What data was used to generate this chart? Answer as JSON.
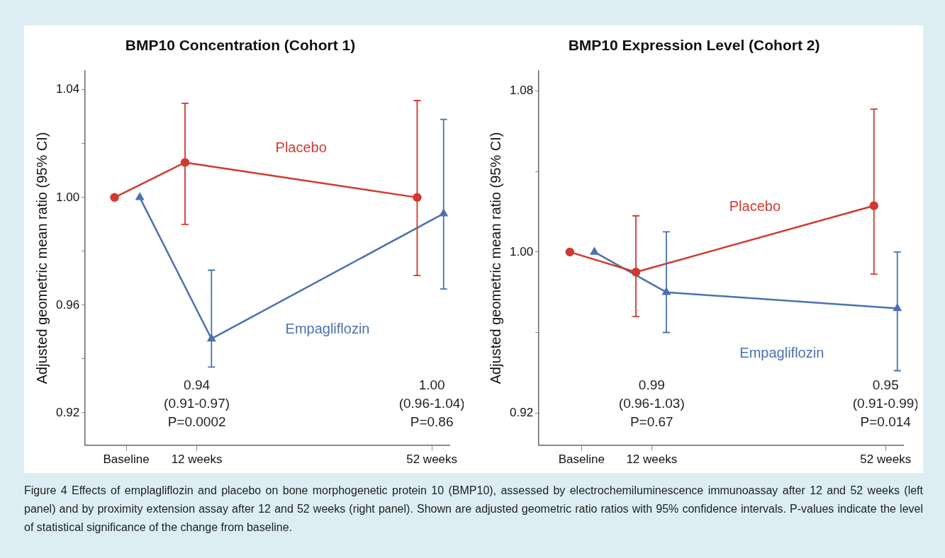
{
  "chart_data": [
    {
      "type": "line",
      "title": "BMP10 Concentration (Cohort 1)",
      "ylabel": "Adjusted geometric mean ratio (95% CI)",
      "xlim": [
        -7,
        55
      ],
      "xticks": [
        {
          "value": 0,
          "label": "Baseline"
        },
        {
          "value": 12,
          "label": "12 weeks"
        },
        {
          "value": 52,
          "label": "52 weeks"
        }
      ],
      "ylim": [
        0.908,
        1.047
      ],
      "yticks": [
        {
          "value": 0.92,
          "label": "0.92"
        },
        {
          "value": 0.94,
          "label": null
        },
        {
          "value": 0.96,
          "label": "0.96"
        },
        {
          "value": 0.98,
          "label": null
        },
        {
          "value": 1,
          "label": "1.00"
        },
        {
          "value": 1.02,
          "label": null
        },
        {
          "value": 1.04,
          "label": "1.04"
        }
      ],
      "grid": false,
      "legend": false,
      "series": [
        {
          "name": "Placebo",
          "color": "#d03a30",
          "marker": "circle",
          "x": [
            -2,
            10,
            49.5
          ],
          "values": [
            1.0,
            1.013,
            1.0
          ],
          "errors": [
            null,
            [
              0.99,
              1.035
            ],
            [
              0.971,
              1.036
            ]
          ]
        },
        {
          "name": "Empagliflozin",
          "color": "#4a72b0",
          "marker": "triangle",
          "x": [
            2.3,
            14.5,
            54
          ],
          "values": [
            1.0,
            0.9475,
            0.994
          ],
          "errors": [
            null,
            [
              0.937,
              0.973
            ],
            [
              0.966,
              1.029
            ]
          ]
        }
      ],
      "annotations": [
        "0.94\n(0.91-0.97)\nP=0.0002",
        "1.00\n(0.96-1.04)\nP=0.86",
        "Figure 4 Effects of emplagliflozin and placebo on bone morphogenetic protein 10 (BMP10), assessed by electrochemiluminescence immunoassay after 12 and 52 weeks (left panel) and by proximity extension assay after 12 and 52 weeks (right panel). Shown are adjusted geometric ratio ratios with 95% confidence intervals. P-values indicate the level of statistical significance of the change from baseline."
      ]
    },
    {
      "type": "line",
      "title": "BMP10 Expression Level (Cohort 2)",
      "ylabel": "Adjusted geometric mean ratio (95% CI)",
      "xlim": [
        -7.3,
        55
      ],
      "xticks": [
        {
          "value": 0,
          "label": "Baseline"
        },
        {
          "value": 12,
          "label": "12 weeks"
        },
        {
          "value": 52,
          "label": "52 weeks"
        }
      ],
      "ylim": [
        0.904,
        1.09
      ],
      "yticks": [
        {
          "value": 0.92,
          "label": "0.92"
        },
        {
          "value": 0.96,
          "label": null
        },
        {
          "value": 1,
          "label": "1.00"
        },
        {
          "value": 1.04,
          "label": null
        },
        {
          "value": 1.08,
          "label": "1.08"
        }
      ],
      "grid": false,
      "legend": false,
      "series": [
        {
          "name": "Placebo",
          "color": "#d03a30",
          "marker": "circle",
          "x": [
            -2,
            9.3,
            50
          ],
          "values": [
            1.0,
            0.99,
            1.023
          ],
          "errors": [
            null,
            [
              0.968,
              1.018
            ],
            [
              0.989,
              1.071
            ]
          ]
        },
        {
          "name": "Empagliflozin",
          "color": "#4a72b0",
          "marker": "triangle",
          "x": [
            2.2,
            14.5,
            54
          ],
          "values": [
            1.0,
            0.98,
            0.972
          ],
          "errors": [
            null,
            [
              0.96,
              1.01
            ],
            [
              0.941,
              1.0
            ]
          ]
        }
      ],
      "annotations": [
        "0.99\n(0.96-1.03)\nP=0.67",
        "0.95\n(0.91-0.99)\nP=0.014"
      ]
    }
  ]
}
